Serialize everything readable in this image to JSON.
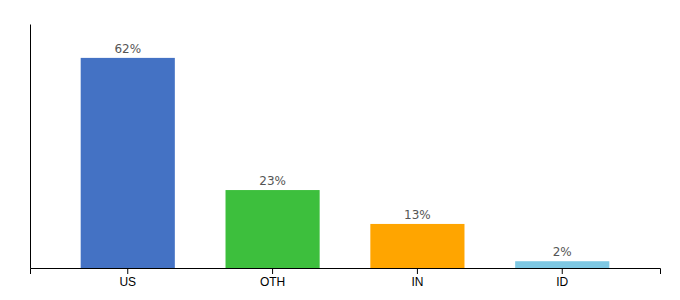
{
  "chart_data": {
    "type": "bar",
    "categories": [
      "US",
      "OTH",
      "IN",
      "ID"
    ],
    "values": [
      62,
      23,
      13,
      2
    ],
    "value_labels": [
      "62%",
      "23%",
      "13%",
      "2%"
    ],
    "data_labels": true,
    "colors": [
      "#4472C4",
      "#3DBF3D",
      "#FFA500",
      "#7EC8E3"
    ],
    "ylim": [
      0,
      72
    ],
    "tick_labels": "x",
    "grid": false
  }
}
